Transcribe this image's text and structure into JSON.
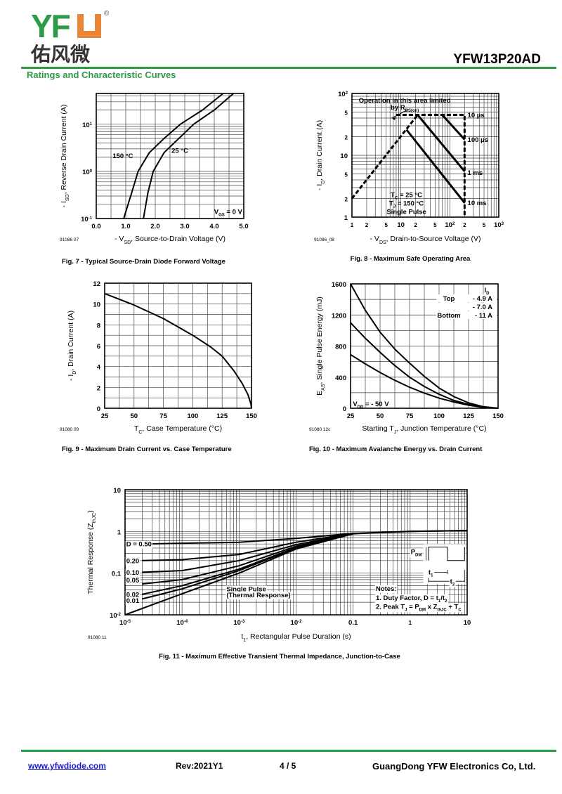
{
  "header": {
    "logo_latin": "YFW",
    "logo_cn": "佑风微",
    "logo_reg": "®",
    "part_number": "YFW13P20AD",
    "section_title": "Ratings and Characteristic Curves"
  },
  "footer": {
    "website": "www.yfwdiode.com",
    "revision": "Rev:2021Y1",
    "page": "4 / 5",
    "company": "GuangDong YFW Electronics Co, Ltd."
  },
  "colors": {
    "brand_green": "#2e9a48",
    "brand_orange": "#e8863a",
    "link": "#1a1ad0"
  },
  "chart_data": [
    {
      "type": "line",
      "title": "Fig. 7 - Typical Source-Drain Diode Forward Voltage",
      "figure_id": "91086 07",
      "xlabel": "- V_{SD}, Source-to-Drain Voltage (V)",
      "ylabel": "- I_{SD}, Reverse Drain Current (A)",
      "xscale": "linear",
      "yscale": "log",
      "xlim": [
        0,
        5
      ],
      "ylim": [
        0.1,
        45
      ],
      "grid": true,
      "xgrid_step": 0.5,
      "xticks": [
        [
          0,
          "0.0"
        ],
        [
          1,
          "1.0"
        ],
        [
          2,
          "2.0"
        ],
        [
          3,
          "3.0"
        ],
        [
          4,
          "4.0"
        ],
        [
          5,
          "5.0"
        ]
      ],
      "yticks": [
        [
          0.1,
          "10^{-1}"
        ],
        [
          1,
          "10^{0}"
        ],
        [
          10,
          "10^{1}"
        ]
      ],
      "series": [
        {
          "name": "150 °C",
          "points": [
            [
              0.93,
              0.1
            ],
            [
              1.2,
              0.35
            ],
            [
              1.42,
              1
            ],
            [
              1.8,
              2.5
            ],
            [
              2.3,
              5
            ],
            [
              2.85,
              10
            ],
            [
              3.6,
              20
            ],
            [
              4.3,
              45
            ]
          ]
        },
        {
          "name": "25 °C",
          "points": [
            [
              1.6,
              0.1
            ],
            [
              1.75,
              0.35
            ],
            [
              1.93,
              1
            ],
            [
              2.3,
              2.5
            ],
            [
              2.8,
              5
            ],
            [
              3.3,
              10
            ],
            [
              4.0,
              20
            ],
            [
              4.65,
              45
            ]
          ]
        }
      ],
      "annotations": [
        {
          "text": "150 °C",
          "x": 1.25,
          "y": 2.15,
          "anchor": "end"
        },
        {
          "text": "25 °C",
          "x": 2.55,
          "y": 2.8,
          "anchor": "start"
        },
        {
          "text": "V_{GS} = 0 V",
          "x": 4.95,
          "y": 0.14,
          "anchor": "end"
        }
      ]
    },
    {
      "type": "line",
      "title": "Fig. 8 - Maximum Safe Operating Area",
      "figure_id": "91086_08",
      "xlabel": "- V_{DS}, Drain-to-Source Voltage (V)",
      "ylabel": "- I_{D}, Drain Current (A)",
      "xscale": "log",
      "yscale": "log",
      "xlim": [
        1,
        1000
      ],
      "ylim": [
        1,
        100
      ],
      "grid": true,
      "xticks": [
        [
          1,
          "1"
        ],
        [
          2,
          "2"
        ],
        [
          5,
          "5"
        ],
        [
          10,
          "10"
        ],
        [
          20,
          "2"
        ],
        [
          50,
          "5"
        ],
        [
          100,
          "10^{2}"
        ],
        [
          200,
          "2"
        ],
        [
          500,
          "5"
        ],
        [
          1000,
          "10^{3}"
        ]
      ],
      "yticks": [
        [
          1,
          "1"
        ],
        [
          2,
          "2"
        ],
        [
          5,
          "5"
        ],
        [
          10,
          "10"
        ],
        [
          20,
          "2"
        ],
        [
          50,
          "5"
        ],
        [
          100,
          "10^{2}"
        ]
      ],
      "series": [
        {
          "name": "RDS(on) limit",
          "dashed": true,
          "points": [
            [
              1,
              2
            ],
            [
              22,
              45
            ]
          ]
        },
        {
          "name": "10 µs",
          "dashed": true,
          "points": [
            [
              8,
              45
            ],
            [
              200,
              45
            ],
            [
              200,
              1
            ]
          ]
        },
        {
          "name": "100 µs",
          "points": [
            [
              70,
              45
            ],
            [
              200,
              18
            ]
          ]
        },
        {
          "name": "1 ms",
          "points": [
            [
              22,
              45
            ],
            [
              200,
              5.5
            ]
          ]
        },
        {
          "name": "10 ms",
          "points": [
            [
              13,
              26
            ],
            [
              200,
              1.7
            ]
          ]
        }
      ],
      "annotations": [
        {
          "text": "Operation in this area limited",
          "x": 12,
          "y": 78,
          "anchor": "middle"
        },
        {
          "text": "by R_{DS(on)}",
          "x": 12,
          "y": 60,
          "anchor": "middle"
        },
        {
          "text": "10 µs",
          "x": 230,
          "y": 45,
          "anchor": "start"
        },
        {
          "text": "100 µs",
          "x": 230,
          "y": 18,
          "anchor": "start"
        },
        {
          "text": "1 ms",
          "x": 230,
          "y": 5.3,
          "anchor": "start"
        },
        {
          "text": "10 ms",
          "x": 230,
          "y": 1.7,
          "anchor": "start"
        },
        {
          "text": "T_{C} = 25 °C",
          "x": 13,
          "y": 2.3,
          "anchor": "middle"
        },
        {
          "text": "T_{J} = 150 °C",
          "x": 13,
          "y": 1.68,
          "anchor": "middle"
        },
        {
          "text": "Single Pulse",
          "x": 13,
          "y": 1.24,
          "anchor": "middle"
        }
      ]
    },
    {
      "type": "line",
      "title": "Fig. 9 - Maximum Drain Current vs. Case Temperature",
      "figure_id": "91080 09",
      "xlabel": "T_{C}, Case Temperature (°C)",
      "ylabel": "- I_{D}, Drain Current (A)",
      "xscale": "linear",
      "yscale": "linear",
      "xlim": [
        25,
        150
      ],
      "ylim": [
        0,
        12
      ],
      "grid": true,
      "xgrid_step": 12.5,
      "ygrid_step": 1,
      "xticks": [
        [
          25,
          "25"
        ],
        [
          50,
          "50"
        ],
        [
          75,
          "75"
        ],
        [
          100,
          "100"
        ],
        [
          125,
          "125"
        ],
        [
          150,
          "150"
        ]
      ],
      "yticks": [
        [
          0,
          "0"
        ],
        [
          2,
          "2"
        ],
        [
          4,
          "4"
        ],
        [
          6,
          "6"
        ],
        [
          8,
          "8"
        ],
        [
          10,
          "10"
        ],
        [
          12,
          "12"
        ]
      ],
      "series": [
        {
          "name": "ID max",
          "points": [
            [
              25,
              11
            ],
            [
              50,
              9.9
            ],
            [
              75,
              8.6
            ],
            [
              100,
              7.0
            ],
            [
              115,
              5.9
            ],
            [
              125,
              5.0
            ],
            [
              135,
              3.6
            ],
            [
              142,
              2.4
            ],
            [
              147,
              1.3
            ],
            [
              149.5,
              0.4
            ],
            [
              150,
              0
            ]
          ]
        }
      ],
      "annotations": []
    },
    {
      "type": "line",
      "title": "Fig. 10 - Maximum Avalanche Energy vs. Drain Current",
      "figure_id": "91080 12c",
      "xlabel": "Starting T_{J}, Junction Temperature (°C)",
      "ylabel": "E_{AS}, Single Pulse Energy (mJ)",
      "xscale": "linear",
      "yscale": "linear",
      "xlim": [
        25,
        150
      ],
      "ylim": [
        0,
        1600
      ],
      "grid": true,
      "xgrid_step": 12.5,
      "ygrid_step": 200,
      "xticks": [
        [
          25,
          "25"
        ],
        [
          50,
          "50"
        ],
        [
          75,
          "75"
        ],
        [
          100,
          "100"
        ],
        [
          125,
          "125"
        ],
        [
          150,
          "150"
        ]
      ],
      "yticks": [
        [
          0,
          "0"
        ],
        [
          400,
          "400"
        ],
        [
          800,
          "800"
        ],
        [
          1200,
          "1200"
        ],
        [
          1600,
          "1600"
        ]
      ],
      "series": [
        {
          "name": "- 4.9 A",
          "points": [
            [
              25,
              1600
            ],
            [
              37.5,
              1260
            ],
            [
              50,
              980
            ],
            [
              62.5,
              760
            ],
            [
              75,
              580
            ],
            [
              87.5,
              410
            ],
            [
              100,
              260
            ],
            [
              112.5,
              150
            ],
            [
              125,
              70
            ],
            [
              137.5,
              20
            ],
            [
              150,
              0
            ]
          ]
        },
        {
          "name": "- 7.0 A",
          "points": [
            [
              25,
              1100
            ],
            [
              37.5,
              900
            ],
            [
              50,
              720
            ],
            [
              62.5,
              550
            ],
            [
              75,
              400
            ],
            [
              87.5,
              280
            ],
            [
              100,
              180
            ],
            [
              112.5,
              100
            ],
            [
              125,
              50
            ],
            [
              137.5,
              15
            ],
            [
              150,
              0
            ]
          ]
        },
        {
          "name": "- 11 A",
          "points": [
            [
              25,
              690
            ],
            [
              37.5,
              570
            ],
            [
              50,
              460
            ],
            [
              62.5,
              360
            ],
            [
              75,
              270
            ],
            [
              87.5,
              195
            ],
            [
              100,
              130
            ],
            [
              112.5,
              80
            ],
            [
              125,
              40
            ],
            [
              137.5,
              12
            ],
            [
              150,
              0
            ]
          ]
        }
      ],
      "legend": {
        "header": "I_{D}",
        "rows": [
          [
            "Top",
            "- 4.9 A"
          ],
          [
            "",
            "- 7.0 A"
          ],
          [
            "Bottom",
            "- 11 A"
          ]
        ],
        "placement": "top-right"
      },
      "annotations": [
        {
          "text": "V_{DD} = - 50 V",
          "x": 27,
          "y": 60,
          "anchor": "start"
        }
      ]
    },
    {
      "type": "line",
      "title": "Fig. 11 - Maximum Effective Transient Thermal Impedance, Junction-to-Case",
      "figure_id": "91080 11",
      "xlabel": "t_{1}, Rectangular Pulse Duration (s)",
      "ylabel": "Thermal Response (Z_{thJC})",
      "xscale": "log",
      "yscale": "log",
      "xlim": [
        1e-05,
        10
      ],
      "ylim": [
        0.01,
        10
      ],
      "grid": true,
      "xticks": [
        [
          1e-05,
          "10^{-5}"
        ],
        [
          0.0001,
          "10^{-4}"
        ],
        [
          0.001,
          "10^{-3}"
        ],
        [
          0.01,
          "10^{-2}"
        ],
        [
          0.1,
          "0.1"
        ],
        [
          1,
          "1"
        ],
        [
          10,
          "10"
        ]
      ],
      "yticks": [
        [
          0.01,
          "10^{-2}"
        ],
        [
          0.1,
          "0.1"
        ],
        [
          1,
          "1"
        ],
        [
          10,
          "10"
        ]
      ],
      "series": [
        {
          "name": "D = 0.50",
          "points": [
            [
              2e-05,
              0.5
            ],
            [
              0.001,
              0.55
            ],
            [
              0.01,
              0.68
            ],
            [
              0.1,
              0.9
            ],
            [
              1,
              1.0
            ],
            [
              10,
              1.05
            ]
          ]
        },
        {
          "name": "0.20",
          "points": [
            [
              2e-05,
              0.2
            ],
            [
              0.0001,
              0.21
            ],
            [
              0.001,
              0.28
            ],
            [
              0.01,
              0.55
            ],
            [
              0.1,
              0.9
            ]
          ]
        },
        {
          "name": "0.10",
          "points": [
            [
              2e-05,
              0.105
            ],
            [
              0.0001,
              0.115
            ],
            [
              0.001,
              0.2
            ],
            [
              0.01,
              0.48
            ],
            [
              0.1,
              0.9
            ]
          ]
        },
        {
          "name": "0.05",
          "points": [
            [
              2e-05,
              0.055
            ],
            [
              0.0001,
              0.07
            ],
            [
              0.001,
              0.15
            ],
            [
              0.01,
              0.44
            ],
            [
              0.1,
              0.89
            ]
          ]
        },
        {
          "name": "0.02",
          "points": [
            [
              2e-05,
              0.031
            ],
            [
              0.0001,
              0.05
            ],
            [
              0.001,
              0.125
            ],
            [
              0.01,
              0.41
            ],
            [
              0.1,
              0.89
            ]
          ]
        },
        {
          "name": "0.01",
          "points": [
            [
              2e-05,
              0.024
            ],
            [
              0.0001,
              0.042
            ],
            [
              0.001,
              0.115
            ],
            [
              0.01,
              0.4
            ],
            [
              0.1,
              0.88
            ]
          ]
        },
        {
          "name": "Single Pulse (Thermal Response)",
          "points": [
            [
              1e-05,
              0.01
            ],
            [
              0.0001,
              0.032
            ],
            [
              0.001,
              0.1
            ],
            [
              0.01,
              0.38
            ],
            [
              0.1,
              0.88
            ],
            [
              1,
              1.0
            ],
            [
              10,
              1.05
            ]
          ]
        }
      ],
      "annotations": [
        {
          "text": "D = 0.50",
          "x": 1.05e-05,
          "y": 0.5,
          "anchor": "start",
          "bg": true
        },
        {
          "text": "0.20",
          "x": 1.05e-05,
          "y": 0.2,
          "anchor": "start",
          "bg": true
        },
        {
          "text": "0.10",
          "x": 1.05e-05,
          "y": 0.105,
          "anchor": "start",
          "bg": true
        },
        {
          "text": "0.05",
          "x": 1.05e-05,
          "y": 0.068,
          "anchor": "start",
          "bg": true
        },
        {
          "text": "0.02",
          "x": 1.05e-05,
          "y": 0.031,
          "anchor": "start",
          "bg": true
        },
        {
          "text": "0.01",
          "x": 1.05e-05,
          "y": 0.022,
          "anchor": "start",
          "bg": true
        },
        {
          "text": "Single Pulse",
          "x": 0.0006,
          "y": 0.042,
          "anchor": "start",
          "bg": true
        },
        {
          "text": "(Thermal Response)",
          "x": 0.0006,
          "y": 0.03,
          "anchor": "start",
          "bg": true
        },
        {
          "text": "Notes:",
          "x": 0.25,
          "y": 0.043,
          "anchor": "start",
          "bg": true
        },
        {
          "text": "1. Duty Factor, D = t_{1}/t_{2}",
          "x": 0.25,
          "y": 0.026,
          "anchor": "start",
          "bg": true
        },
        {
          "text": "2. Peak T_{J} = P_{DM} x Z_{thJC} + T_{C}",
          "x": 0.25,
          "y": 0.016,
          "anchor": "start",
          "bg": true
        },
        {
          "text": "P_{DM}",
          "x": 1.6,
          "y": 0.33,
          "anchor": "end",
          "bg": true
        },
        {
          "text": "t_{1}",
          "x": 2.3,
          "y": 0.107,
          "anchor": "middle",
          "bg": true
        },
        {
          "text": "t_{2}",
          "x": 5.5,
          "y": 0.065,
          "anchor": "middle",
          "bg": true
        }
      ]
    }
  ]
}
